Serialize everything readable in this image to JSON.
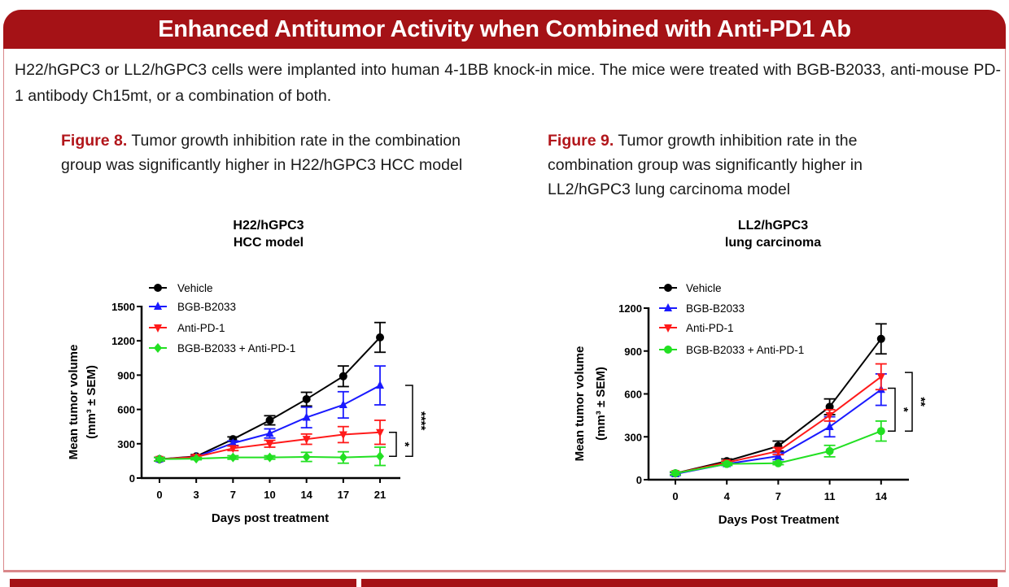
{
  "header": {
    "title": "Enhanced Antitumor Activity when Combined with Anti-PD1 Ab"
  },
  "intro": "H22/hGPC3 or LL2/hGPC3 cells were implanted into human 4-1BB knock-in mice. The mice were treated with BGB-B2033, anti-mouse PD-1 antibody Ch15mt, or a combination of both.",
  "captions": [
    {
      "label": "Figure 8.",
      "text": " Tumor growth inhibition rate  in the combination group was significantly higher in H22/hGPC3 HCC model"
    },
    {
      "label": "Figure 9.",
      "text": " Tumor growth inhibition rate in the combination group was significantly higher in LL2/hGPC3 lung carcinoma model"
    }
  ],
  "chart_data": [
    {
      "type": "line",
      "title": [
        "H22/hGPC3",
        "HCC model"
      ],
      "xlabel": "Days post treatment",
      "ylabel": [
        "Mean tumor volume",
        "(mm³ ± SEM)"
      ],
      "x": [
        0,
        3,
        7,
        10,
        14,
        17,
        21
      ],
      "ylim": [
        0,
        1500
      ],
      "yticks": [
        0,
        300,
        600,
        900,
        1200,
        1500
      ],
      "legend_position": "top-left",
      "series": [
        {
          "name": "Vehicle",
          "color": "#000000",
          "marker": "circle",
          "values": [
            165,
            190,
            340,
            505,
            690,
            890,
            1230
          ],
          "sem": [
            15,
            15,
            20,
            40,
            60,
            90,
            130
          ]
        },
        {
          "name": "BGB-B2033",
          "color": "#1a1aff",
          "marker": "triangle-up",
          "values": [
            165,
            185,
            305,
            390,
            530,
            640,
            810
          ],
          "sem": [
            15,
            15,
            20,
            40,
            90,
            115,
            170
          ]
        },
        {
          "name": "Anti-PD-1",
          "color": "#ff1a1a",
          "marker": "triangle-down",
          "values": [
            165,
            185,
            260,
            300,
            340,
            380,
            400
          ],
          "sem": [
            15,
            15,
            20,
            30,
            45,
            70,
            105
          ]
        },
        {
          "name": "BGB-B2033 + Anti-PD-1",
          "color": "#22e022",
          "marker": "diamond",
          "values": [
            165,
            170,
            180,
            180,
            185,
            180,
            190
          ],
          "sem": [
            15,
            10,
            15,
            15,
            40,
            50,
            80
          ]
        }
      ],
      "annotations": [
        {
          "label": "*",
          "from": 400,
          "to": 190
        },
        {
          "label": "****",
          "from": 810,
          "to": 190
        }
      ]
    },
    {
      "type": "line",
      "title": [
        "LL2/hGPC3",
        "lung carcinoma"
      ],
      "xlabel": "Days Post Treatment",
      "ylabel": [
        "Mean tumor volume",
        "(mm³ ± SEM)"
      ],
      "x": [
        0,
        4,
        7,
        11,
        14
      ],
      "ylim": [
        0,
        1200
      ],
      "yticks": [
        0,
        300,
        600,
        900,
        1200
      ],
      "legend_position": "top-left",
      "series": [
        {
          "name": "Vehicle",
          "color": "#000000",
          "marker": "circle",
          "values": [
            45,
            130,
            235,
            510,
            985
          ],
          "sem": [
            10,
            15,
            35,
            55,
            105
          ]
        },
        {
          "name": "BGB-B2033",
          "color": "#1a1aff",
          "marker": "triangle-up",
          "values": [
            40,
            110,
            165,
            370,
            630
          ],
          "sem": [
            10,
            10,
            25,
            70,
            110
          ]
        },
        {
          "name": "Anti-PD-1",
          "color": "#ff1a1a",
          "marker": "triangle-down",
          "values": [
            45,
            120,
            200,
            450,
            720
          ],
          "sem": [
            10,
            10,
            25,
            40,
            90
          ]
        },
        {
          "name": "BGB-B2033 + Anti-PD-1",
          "color": "#22e022",
          "marker": "circle",
          "values": [
            45,
            110,
            115,
            200,
            340
          ],
          "sem": [
            10,
            10,
            10,
            40,
            70
          ]
        }
      ],
      "annotations": [
        {
          "label": "*",
          "from": 640,
          "to": 340
        },
        {
          "label": "**",
          "from": 750,
          "to": 340
        }
      ]
    }
  ]
}
